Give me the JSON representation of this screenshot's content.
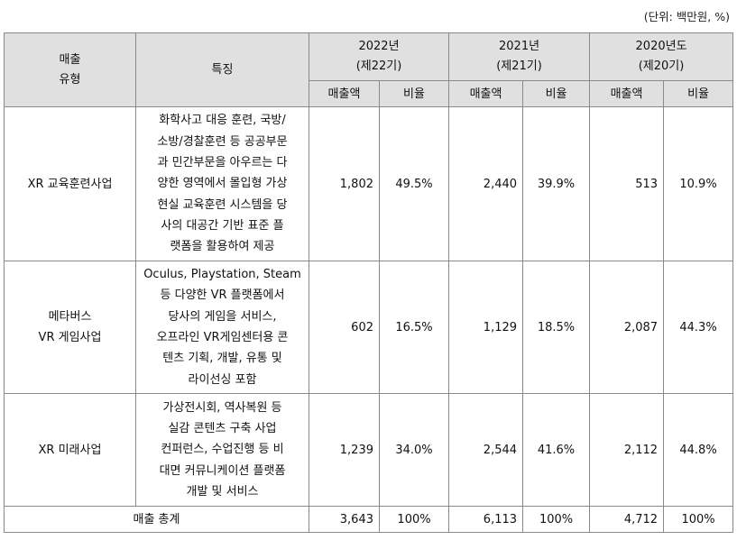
{
  "unit_note": "(단위: 백만원, %)",
  "header": {
    "type_line1": "매출",
    "type_line2": "유형",
    "feature": "특징",
    "years": [
      {
        "year": "2022년",
        "period": "(제22기)"
      },
      {
        "year": "2021년",
        "period": "(제21기)"
      },
      {
        "year": "2020년도",
        "period": "(제20기)"
      }
    ],
    "sales": "매출액",
    "ratio": "비율"
  },
  "rows": [
    {
      "type_lines": [
        "XR 교육훈련사업"
      ],
      "feature_lines": [
        "화학사고 대응 훈련, 국방/",
        "소방/경찰훈련 등 공공부문",
        "과 민간부문을 아우르는 다",
        "양한 영역에서 몰입형 가상",
        "현실 교육훈련 시스템을 당",
        "사의 대공간 기반 표준 플",
        "랫폼을 활용하여 제공"
      ],
      "values": [
        "1,802",
        "49.5%",
        "2,440",
        "39.9%",
        "513",
        "10.9%"
      ]
    },
    {
      "type_lines": [
        "메타버스",
        "VR 게임사업"
      ],
      "feature_lines": [
        "Oculus, Playstation, Steam",
        "등 다양한 VR 플랫폼에서",
        "당사의 게임을 서비스,",
        "오프라인 VR게임센터용 콘",
        "텐츠 기획, 개발, 유통 및",
        "라이선싱 포함"
      ],
      "values": [
        "602",
        "16.5%",
        "1,129",
        "18.5%",
        "2,087",
        "44.3%"
      ]
    },
    {
      "type_lines": [
        "XR 미래사업"
      ],
      "feature_lines": [
        "가상전시회, 역사복원 등",
        "실감 콘텐츠 구축 사업",
        "컨퍼런스, 수업진행 등 비",
        "대면 커뮤니케이션 플랫폼",
        "개발 및 서비스"
      ],
      "values": [
        "1,239",
        "34.0%",
        "2,544",
        "41.6%",
        "2,112",
        "44.8%"
      ]
    }
  ],
  "total": {
    "label": "매출 총계",
    "values": [
      "3,643",
      "100%",
      "6,113",
      "100%",
      "4,712",
      "100%"
    ]
  }
}
